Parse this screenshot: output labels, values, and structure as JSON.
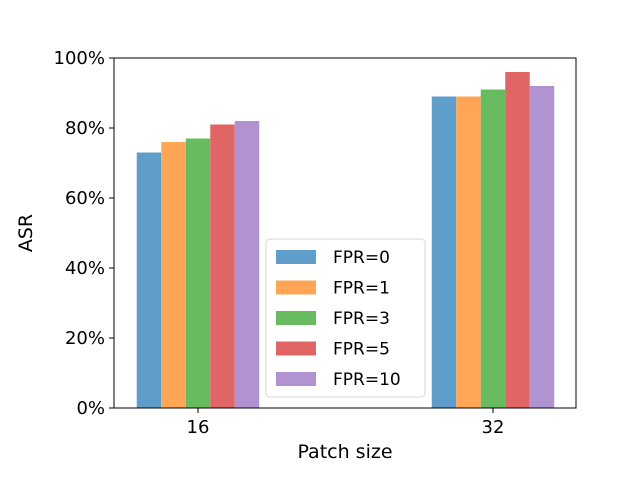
{
  "chart_data": {
    "type": "bar",
    "categories": [
      "16",
      "32"
    ],
    "series": [
      {
        "name": "FPR=0",
        "color": "#5f9ecb",
        "values": [
          0.73,
          0.89
        ]
      },
      {
        "name": "FPR=1",
        "color": "#ffa556",
        "values": [
          0.76,
          0.89
        ]
      },
      {
        "name": "FPR=3",
        "color": "#68bb5f",
        "values": [
          0.77,
          0.91
        ]
      },
      {
        "name": "FPR=5",
        "color": "#e06565",
        "values": [
          0.81,
          0.96
        ]
      },
      {
        "name": "FPR=10",
        "color": "#b293d1",
        "values": [
          0.82,
          0.92
        ]
      }
    ],
    "xlabel": "Patch size",
    "ylabel": "ASR",
    "ylim": [
      0,
      1.0
    ],
    "yticks": [
      0,
      0.2,
      0.4,
      0.6,
      0.8,
      1.0
    ],
    "ytick_labels": [
      "0%",
      "20%",
      "40%",
      "60%",
      "80%",
      "100%"
    ],
    "legend_position": "lower-center",
    "grid": false
  }
}
